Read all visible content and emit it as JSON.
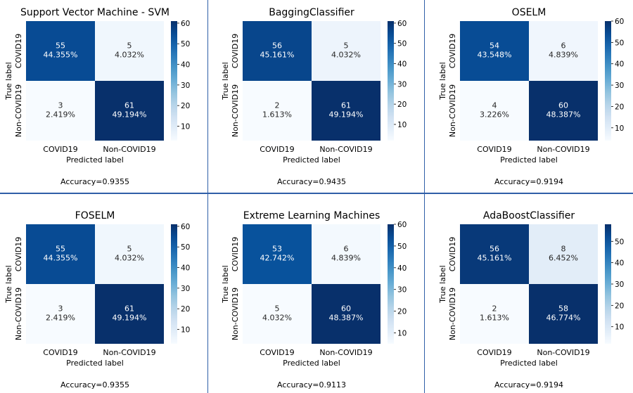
{
  "chart_data": [
    {
      "type": "heatmap",
      "title": "Support Vector Machine - SVM",
      "xlabel": "Predicted label",
      "ylabel": "True label",
      "categories": [
        "COVID19",
        "Non-COVID19"
      ],
      "values": [
        [
          55,
          5
        ],
        [
          3,
          61
        ]
      ],
      "percents": [
        [
          "44.355%",
          "4.032%"
        ],
        [
          "2.419%",
          "49.194%"
        ]
      ],
      "colorbar": {
        "ticks": [
          10,
          20,
          30,
          40,
          50,
          60
        ],
        "min": 3,
        "max": 61
      },
      "footer": "Accuracy=0.9355"
    },
    {
      "type": "heatmap",
      "title": "BaggingClassifier",
      "xlabel": "Predicted label",
      "ylabel": "True label",
      "categories": [
        "COVID19",
        "Non-COVID19"
      ],
      "values": [
        [
          56,
          5
        ],
        [
          2,
          61
        ]
      ],
      "percents": [
        [
          "45.161%",
          "4.032%"
        ],
        [
          "1.613%",
          "49.194%"
        ]
      ],
      "colorbar": {
        "ticks": [
          10,
          20,
          30,
          40,
          50,
          60
        ],
        "min": 2,
        "max": 61
      },
      "footer": "Accuracy=0.9435"
    },
    {
      "type": "heatmap",
      "title": "OSELM",
      "xlabel": "Predicted label",
      "ylabel": "True label",
      "categories": [
        "COVID19",
        "Non-COVID19"
      ],
      "values": [
        [
          54,
          6
        ],
        [
          4,
          60
        ]
      ],
      "percents": [
        [
          "43.548%",
          "4.839%"
        ],
        [
          "3.226%",
          "48.387%"
        ]
      ],
      "colorbar": {
        "ticks": [
          10,
          20,
          30,
          40,
          50,
          60
        ],
        "min": 4,
        "max": 60
      },
      "footer": "Accuracy=0.9194"
    },
    {
      "type": "heatmap",
      "title": "FOSELM",
      "xlabel": "Predicted label",
      "ylabel": "True label",
      "categories": [
        "COVID19",
        "Non-COVID19"
      ],
      "values": [
        [
          55,
          5
        ],
        [
          3,
          61
        ]
      ],
      "percents": [
        [
          "44.355%",
          "4.032%"
        ],
        [
          "2.419%",
          "49.194%"
        ]
      ],
      "colorbar": {
        "ticks": [
          10,
          20,
          30,
          40,
          50,
          60
        ],
        "min": 3,
        "max": 61
      },
      "footer": "Accuracy=0.9355"
    },
    {
      "type": "heatmap",
      "title": "Extreme Learning Machines",
      "xlabel": "Predicted label",
      "ylabel": "True label",
      "categories": [
        "COVID19",
        "Non-COVID19"
      ],
      "values": [
        [
          53,
          6
        ],
        [
          5,
          60
        ]
      ],
      "percents": [
        [
          "42.742%",
          "4.839%"
        ],
        [
          "4.032%",
          "48.387%"
        ]
      ],
      "colorbar": {
        "ticks": [
          10,
          20,
          30,
          40,
          50,
          60
        ],
        "min": 5,
        "max": 60
      },
      "footer": "Accuracy=0.9113"
    },
    {
      "type": "heatmap",
      "title": "AdaBoostClassifier",
      "xlabel": "Predicted label",
      "ylabel": "True label",
      "categories": [
        "COVID19",
        "Non-COVID19"
      ],
      "values": [
        [
          56,
          8
        ],
        [
          2,
          58
        ]
      ],
      "percents": [
        [
          "45.161%",
          "6.452%"
        ],
        [
          "1.613%",
          "46.774%"
        ]
      ],
      "colorbar": {
        "ticks": [
          10,
          20,
          30,
          40,
          50
        ],
        "min": 2,
        "max": 58
      },
      "footer": "Accuracy=0.9194"
    }
  ],
  "colors": {
    "cmap_low": "#f7fbff",
    "cmap_high": "#08306b",
    "divider": "#2f5fa8",
    "text_dark": "#262626",
    "text_light": "#ffffff"
  }
}
